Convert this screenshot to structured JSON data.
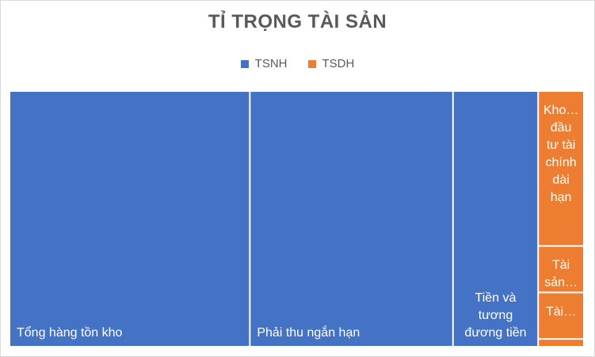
{
  "chart_data": {
    "type": "treemap",
    "title": "TỈ TRỌNG TÀI SẢN",
    "legend": [
      {
        "name": "TSNH",
        "color": "#4472c4"
      },
      {
        "name": "TSDH",
        "color": "#ed7d31"
      }
    ],
    "series": [
      {
        "name": "TSNH",
        "color": "#4472c4",
        "items": [
          {
            "label": "Tổng hàng tồn kho",
            "value": 44.6,
            "lines": [
              "Tổng hàng tồn kho"
            ]
          },
          {
            "label": "Phải thu ngắn hạn",
            "value": 37.7,
            "lines": [
              "Phải thu ngắn hạn"
            ]
          },
          {
            "label": "Tiền và tương đương tiền",
            "value": 15.8,
            "lines": [
              "Tiền và",
              "tương",
              "đương tiền"
            ]
          }
        ]
      },
      {
        "name": "TSDH",
        "color": "#ed7d31",
        "items": [
          {
            "label": "Kho… đầu tư tài chính dài hạn",
            "value": 5.0,
            "lines": [
              "Kho…",
              "đầu",
              "tư tài",
              "chính",
              "dài",
              "hạn"
            ]
          },
          {
            "label": "Tài sản…",
            "value": 1.5,
            "lines": [
              "Tài",
              "sản…"
            ]
          },
          {
            "label": "Tài…",
            "value": 1.5,
            "lines": [
              "Tài…"
            ]
          },
          {
            "label": "",
            "value": 0.2,
            "lines": []
          }
        ]
      }
    ]
  }
}
